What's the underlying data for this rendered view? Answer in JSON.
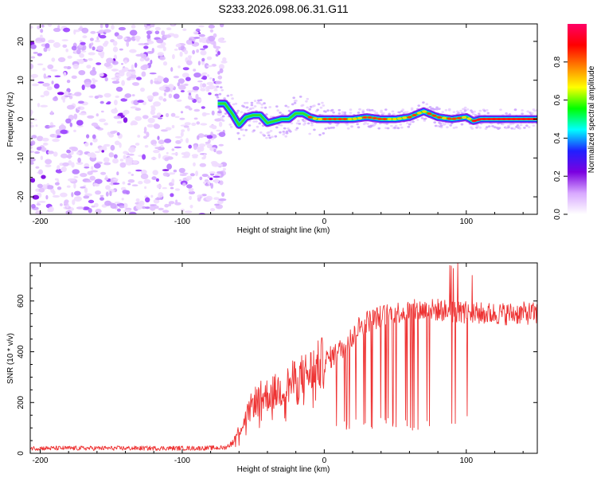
{
  "figure": {
    "title": "S233.2026.098.06.31.G11"
  },
  "chart_data": [
    {
      "type": "heatmap",
      "xlabel": "Height of straight line (km)",
      "ylabel": "Frequency (Hz)",
      "xlim": [
        -207,
        150
      ],
      "ylim": [
        -24.5,
        24.5
      ],
      "xticks": [
        -200,
        -100,
        0,
        100
      ],
      "yticks": [
        -20,
        -10,
        0,
        10,
        20
      ],
      "xtick_labels": [
        "-200",
        "-100",
        "0",
        "100"
      ],
      "ytick_labels": [
        "-20",
        "-10",
        "0",
        "10",
        "20"
      ],
      "noise_region_x": [
        -207,
        -70
      ],
      "signal_start_x": -75,
      "ridge": {
        "x": [
          -75,
          -70,
          -65,
          -60,
          -55,
          -50,
          -45,
          -40,
          -35,
          -30,
          -25,
          -20,
          -15,
          -10,
          -5,
          0,
          10,
          20,
          30,
          40,
          50,
          60,
          70,
          80,
          90,
          100,
          105,
          110,
          150
        ],
        "freq": [
          4,
          4,
          1.5,
          -1.5,
          0.5,
          1,
          1,
          -1,
          -0.5,
          0,
          0,
          1.5,
          1.5,
          0.5,
          0,
          0,
          0,
          0,
          0.5,
          0,
          0,
          0.5,
          2,
          0.5,
          0,
          0.5,
          -0.5,
          0,
          0
        ]
      },
      "colorbar": {
        "label": "Normalized spectral amplitude",
        "range": [
          0,
          1
        ],
        "ticks": [
          0.0,
          0.2,
          0.4,
          0.6,
          0.8
        ],
        "tick_labels": [
          "0.0",
          "0.2",
          "0.4",
          "0.6",
          "0.8"
        ],
        "colormap": [
          "#ffffff",
          "#d8a8ff",
          "#7b00e0",
          "#2020ff",
          "#00ffff",
          "#00ff00",
          "#ffff00",
          "#ff8000",
          "#ff0000",
          "#ff0066"
        ]
      },
      "grid": false
    },
    {
      "type": "line",
      "xlabel": "Height of straight line (km)",
      "ylabel": "SNR (10 * v/v)",
      "xlim": [
        -207,
        150
      ],
      "ylim": [
        0,
        750
      ],
      "xticks": [
        -200,
        -100,
        0,
        100
      ],
      "yticks": [
        0,
        200,
        400,
        600
      ],
      "xtick_labels": [
        "-200",
        "-100",
        "0",
        "100"
      ],
      "ytick_labels": [
        "0",
        "200",
        "400",
        "600"
      ],
      "line_color": "#ee3333",
      "series": [
        {
          "x": [
            -207,
            -180,
            -150,
            -120,
            -90,
            -70,
            -65,
            -60,
            -55,
            -50,
            -45,
            -40,
            -35,
            -30,
            -25,
            -20,
            -15,
            -10,
            -5,
            0,
            5,
            10,
            15,
            20,
            25,
            30,
            40,
            50,
            60,
            70,
            80,
            90,
            100,
            110,
            120,
            130,
            140,
            150
          ],
          "y": [
            20,
            20,
            20,
            20,
            20,
            22,
            40,
            90,
            140,
            200,
            220,
            230,
            240,
            255,
            270,
            290,
            305,
            320,
            340,
            360,
            380,
            400,
            430,
            460,
            500,
            520,
            540,
            555,
            560,
            565,
            565,
            560,
            555,
            550,
            550,
            550,
            552,
            550
          ]
        }
      ],
      "grid": false
    }
  ]
}
